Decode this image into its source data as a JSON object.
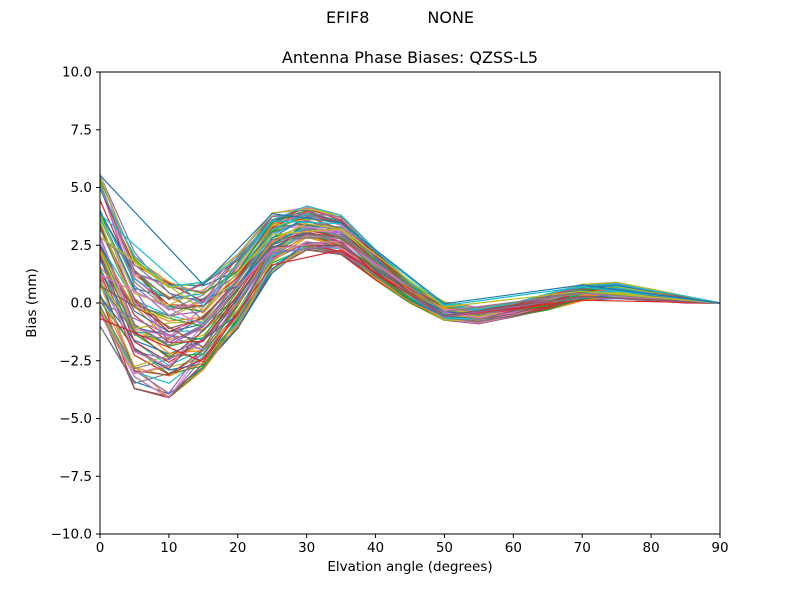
{
  "header": {
    "left_title": "EFIF8",
    "right_title": "NONE"
  },
  "chart_data": {
    "type": "line",
    "title": "Antenna Phase Biases: QZSS-L5",
    "xlabel": "Elvation angle (degrees)",
    "ylabel": "Bias (mm)",
    "xlim": [
      0,
      90
    ],
    "ylim": [
      -10,
      10
    ],
    "xticks": [
      0,
      10,
      20,
      30,
      40,
      50,
      60,
      70,
      80,
      90
    ],
    "xtick_labels": [
      "0",
      "10",
      "20",
      "30",
      "40",
      "50",
      "60",
      "70",
      "80",
      "90"
    ],
    "yticks": [
      -10,
      -7.5,
      -5,
      -2.5,
      0,
      2.5,
      5,
      7.5,
      10
    ],
    "ytick_labels": [
      "−10.0",
      "−7.5",
      "−5.0",
      "−2.5",
      "0.0",
      "2.5",
      "5.0",
      "7.5",
      "10.0"
    ],
    "grid": "off",
    "legend": "off",
    "x": [
      0,
      5,
      10,
      15,
      20,
      25,
      30,
      35,
      40,
      45,
      50,
      55,
      60,
      65,
      70,
      75,
      80,
      85,
      90
    ],
    "envelope_lower": [
      -1.0,
      -3.7,
      -4.1,
      -2.9,
      -1.1,
      1.3,
      2.3,
      2.1,
      1.0,
      0.0,
      -0.75,
      -0.9,
      -0.6,
      -0.3,
      0.1,
      0.2,
      0.1,
      0.0,
      0.0
    ],
    "envelope_upper": [
      5.6,
      2.2,
      0.9,
      0.9,
      2.1,
      3.9,
      4.2,
      3.8,
      2.3,
      0.9,
      0.05,
      -0.2,
      0.0,
      0.4,
      0.8,
      0.9,
      0.6,
      0.3,
      0.0
    ],
    "num_lines": 70,
    "sparse_x": [
      0,
      15,
      25,
      35,
      50,
      70,
      90
    ],
    "sparse_line_count": 8,
    "line_width": 1.2,
    "colors": [
      "#1f77b4",
      "#ff7f0e",
      "#2ca02c",
      "#d62728",
      "#9467bd",
      "#8c564b",
      "#e377c2",
      "#7f7f7f",
      "#bcbd22",
      "#17becf"
    ],
    "frame_color": "#000000",
    "background": "#ffffff"
  }
}
